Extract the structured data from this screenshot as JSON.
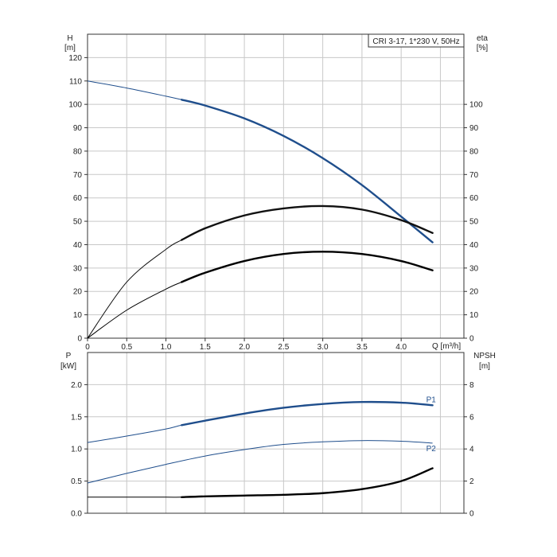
{
  "chart_data": [
    {
      "type": "line",
      "title": "CRI 3-17, 1*230 V, 50Hz",
      "xlabel": "Q [m³/h]",
      "ylabel_left": [
        "H",
        "[m]"
      ],
      "ylabel_right": [
        "eta",
        "[%]"
      ],
      "xlim": [
        0,
        4.8
      ],
      "ylim_left": [
        0,
        130
      ],
      "ylim_right": [
        0,
        130
      ],
      "grid": true,
      "x_ticks": [
        "0",
        "0.5",
        "1.0",
        "1.5",
        "2.0",
        "2.5",
        "3.0",
        "3.5",
        "4.0"
      ],
      "y_ticks_left": [
        "0",
        "10",
        "20",
        "30",
        "40",
        "50",
        "60",
        "70",
        "80",
        "90",
        "100",
        "110",
        "120"
      ],
      "y_ticks_right": [
        "0",
        "10",
        "20",
        "30",
        "40",
        "50",
        "60",
        "70",
        "80",
        "90",
        "100"
      ],
      "series": [
        {
          "color": "#1f4e8c",
          "axis": "left",
          "duty_start": 1.2,
          "x": [
            0,
            0.5,
            1.0,
            1.2,
            1.5,
            2.0,
            2.5,
            3.0,
            3.5,
            4.0,
            4.4
          ],
          "y": [
            110,
            107,
            103.5,
            102,
            99.5,
            94,
            86.5,
            77,
            65.5,
            52,
            41
          ]
        },
        {
          "color": "#111111",
          "axis": "left",
          "duty_start": 1.2,
          "x": [
            0,
            0.5,
            1.0,
            1.2,
            1.5,
            2.0,
            2.5,
            3.0,
            3.5,
            4.0,
            4.4
          ],
          "y": [
            0,
            24,
            38,
            42,
            47,
            52.5,
            55.5,
            56.5,
            55,
            50.5,
            45
          ]
        },
        {
          "color": "#000000",
          "axis": "right",
          "duty_start": 1.2,
          "x": [
            0,
            0.5,
            1.0,
            1.2,
            1.5,
            2.0,
            2.5,
            3.0,
            3.5,
            4.0,
            4.4
          ],
          "y": [
            0,
            12,
            21,
            24,
            28,
            33,
            36,
            37,
            36,
            33,
            29
          ]
        }
      ]
    },
    {
      "type": "line",
      "xlim": [
        0,
        4.8
      ],
      "ylabel_left": [
        "P",
        "[kW]"
      ],
      "ylabel_right": [
        "NPSH",
        "[m]"
      ],
      "ylim_left": [
        0,
        2.5
      ],
      "ylim_right": [
        0,
        10
      ],
      "grid": true,
      "y_ticks_left": [
        "0.0",
        "0.5",
        "1.0",
        "1.5",
        "2.0"
      ],
      "y_ticks_right": [
        "0",
        "2",
        "4",
        "6",
        "8"
      ],
      "series": [
        {
          "name": "P1",
          "color": "#1f4e8c",
          "axis": "left",
          "duty_start": 1.2,
          "x": [
            0,
            0.5,
            1.0,
            1.2,
            1.5,
            2.0,
            2.5,
            3.0,
            3.5,
            4.0,
            4.4
          ],
          "y": [
            1.1,
            1.2,
            1.31,
            1.37,
            1.44,
            1.55,
            1.64,
            1.7,
            1.73,
            1.72,
            1.68
          ]
        },
        {
          "name": "P2",
          "color": "#1f4e8c",
          "axis": "left",
          "duty_start": 10,
          "x": [
            0,
            0.5,
            1.0,
            1.5,
            2.0,
            2.5,
            3.0,
            3.5,
            4.0,
            4.4
          ],
          "y": [
            0.47,
            0.62,
            0.76,
            0.89,
            0.99,
            1.07,
            1.11,
            1.13,
            1.12,
            1.09
          ]
        },
        {
          "color": "#000000",
          "axis": "right",
          "duty_start": 1.2,
          "x": [
            0,
            0.5,
            1.0,
            1.2,
            1.5,
            2.0,
            2.5,
            3.0,
            3.5,
            4.0,
            4.4
          ],
          "y": [
            1.0,
            1.0,
            1.0,
            1.0,
            1.05,
            1.1,
            1.15,
            1.25,
            1.5,
            2.0,
            2.8
          ]
        }
      ]
    }
  ]
}
